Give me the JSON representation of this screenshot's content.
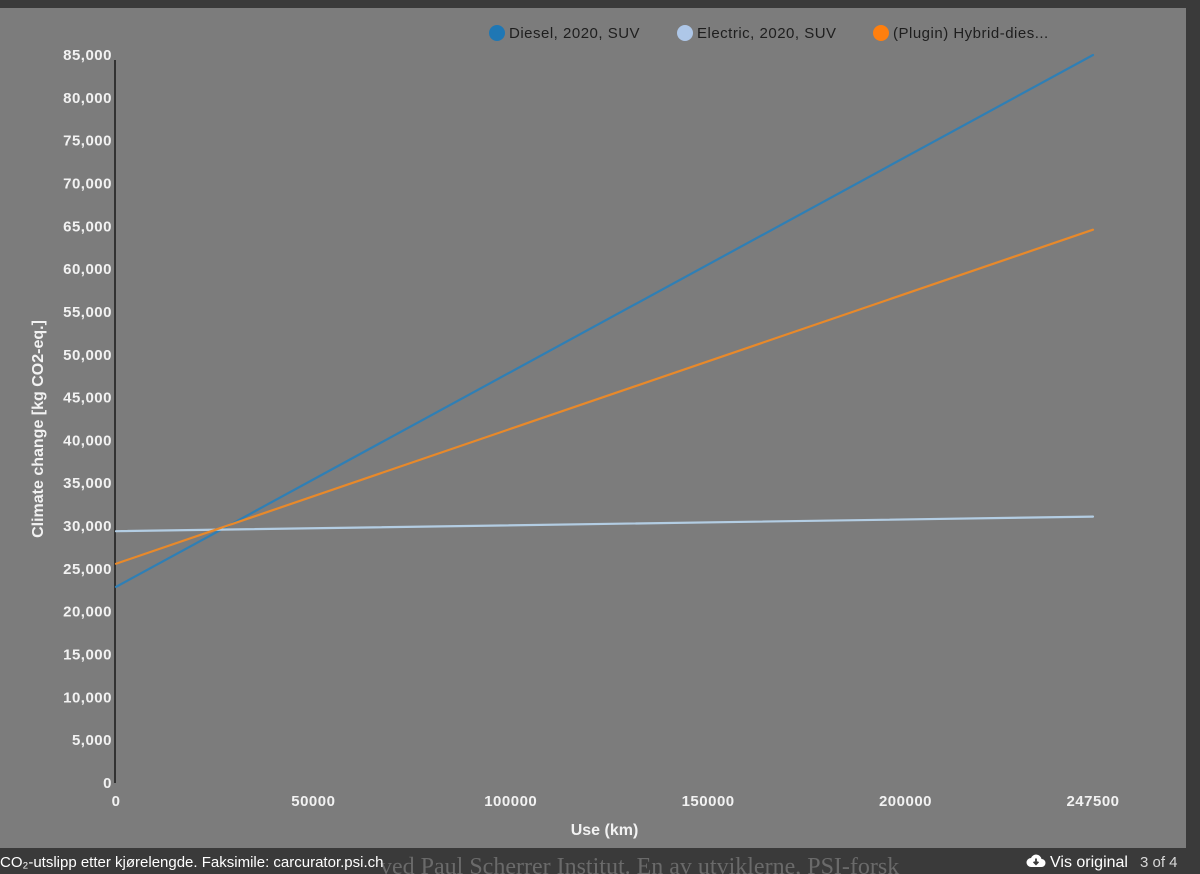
{
  "caption": "CO₂-utslipp etter kjørelengde. Faksimile: carcurator.psi.ch",
  "background_text": "ved Paul Scherrer Institut. En av utviklerne, PSI-forsk",
  "viewer": {
    "original_label": "Vis original",
    "original_icon": "cloud-download-icon",
    "counter": "3 of 4"
  },
  "chart_data": {
    "type": "line",
    "x": [
      0,
      247500
    ],
    "xlabel": "Use (km)",
    "ylabel": "Climate change [kg CO2-eq.]",
    "xlim": [
      0,
      247500
    ],
    "ylim": [
      0,
      85000
    ],
    "x_ticks": [
      0,
      50000,
      100000,
      150000,
      200000,
      247500
    ],
    "x_tick_labels": [
      "0",
      "50000",
      "100000",
      "150000",
      "200000",
      "247500"
    ],
    "y_ticks": [
      0,
      5000,
      10000,
      15000,
      20000,
      25000,
      30000,
      35000,
      40000,
      45000,
      50000,
      55000,
      60000,
      65000,
      70000,
      75000,
      80000,
      85000
    ],
    "y_tick_labels": [
      "0",
      "5,000",
      "10,000",
      "15,000",
      "20,000",
      "25,000",
      "30,000",
      "35,000",
      "40,000",
      "45,000",
      "50,000",
      "55,000",
      "60,000",
      "65,000",
      "70,000",
      "75,000",
      "80,000",
      "85,000"
    ],
    "grid": false,
    "legend_position": "top-right",
    "series": [
      {
        "name": "Diesel, 2020, SUV",
        "values": [
          22900,
          85000
        ],
        "color": "#2f7fb5",
        "marker_color": "#1f77b4"
      },
      {
        "name": "Electric, 2020, SUV",
        "values": [
          29400,
          31100
        ],
        "color": "#b3cde3",
        "marker_color": "#aec7e8"
      },
      {
        "name": "(Plugin) Hybrid-dies...",
        "values": [
          25600,
          64600
        ],
        "color": "#e8892a",
        "marker_color": "#ff7f0e"
      }
    ]
  }
}
